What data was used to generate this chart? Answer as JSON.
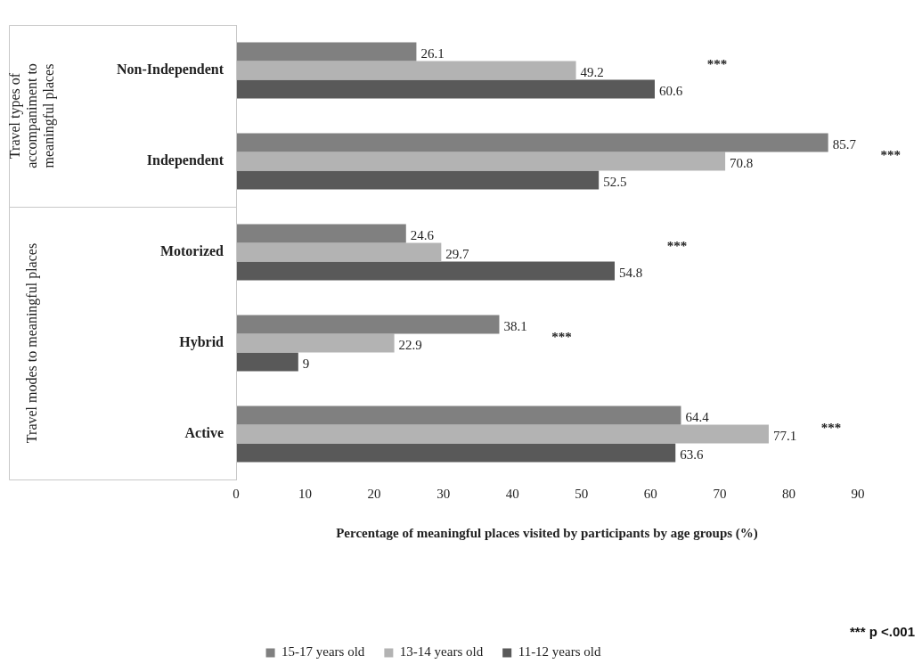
{
  "chart_data": {
    "type": "bar",
    "orientation": "horizontal",
    "xlabel": "Percentage of meaningful places visited by participants by age groups (%)",
    "categories": [
      "Non-Independent",
      "Independent",
      "Motorized",
      "Hybrid",
      "Active"
    ],
    "series": [
      {
        "name": "15-17 years old",
        "color": "#808080",
        "values": [
          26.1,
          85.7,
          24.6,
          38.1,
          64.4
        ]
      },
      {
        "name": "13-14 years old",
        "color": "#b3b3b3",
        "values": [
          49.2,
          70.8,
          29.7,
          22.9,
          77.1
        ]
      },
      {
        "name": "11-12 years old",
        "color": "#595959",
        "values": [
          60.6,
          52.5,
          54.8,
          9,
          63.6
        ]
      }
    ],
    "xlim": [
      0,
      90
    ],
    "xticks": [
      0,
      10,
      20,
      30,
      40,
      50,
      60,
      70,
      80,
      90
    ],
    "grid": false,
    "legend": "bottom",
    "data_labels": true,
    "annotations": [
      "Travel types of accompaniment to meaningful places",
      "Travel modes to meaningful places",
      "***",
      "***",
      "***",
      "***",
      "***",
      "*** p <.001"
    ]
  }
}
